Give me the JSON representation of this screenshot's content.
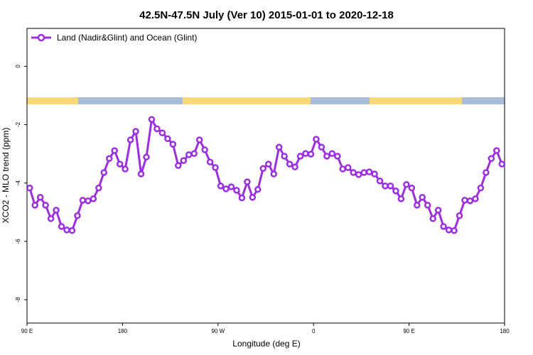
{
  "chart_data": {
    "type": "line",
    "title": "42.5N-47.5N July (Ver 10)   2015-01-01 to 2020-12-18",
    "x_label": "Longitude (deg E)",
    "y_label": "XCO2 - MLO trend (ppm)",
    "legend_position": "top-left",
    "x": [
      92.5,
      97.5,
      102.5,
      107.5,
      112.5,
      117.5,
      122.5,
      127.5,
      132.5,
      137.5,
      142.5,
      147.5,
      152.5,
      157.5,
      162.5,
      167.5,
      172.5,
      177.5,
      182.5,
      187.5,
      192.5,
      197.5,
      202.5,
      207.5,
      212.5,
      217.5,
      222.5,
      227.5,
      232.5,
      237.5,
      242.5,
      247.5,
      252.5,
      257.5,
      262.5,
      267.5,
      272.5,
      277.5,
      282.5,
      287.5,
      292.5,
      297.5,
      302.5,
      307.5,
      312.5,
      317.5,
      322.5,
      327.5,
      332.5,
      337.5,
      342.5,
      347.5,
      352.5,
      357.5,
      362.5,
      367.5,
      372.5,
      377.5,
      382.5,
      387.5,
      392.5,
      397.5,
      402.5,
      407.5,
      412.5,
      417.5,
      422.5,
      427.5,
      432.5,
      437.5,
      442.5,
      447.5,
      452.5,
      457.5,
      462.5,
      467.5,
      472.5,
      477.5,
      482.5,
      487.5,
      492.5,
      497.5,
      502.5,
      507.5,
      512.5,
      517.5,
      522.5,
      527.5,
      532.5,
      537.5
    ],
    "series": [
      {
        "name": "Land (Nadir&Glint) and Ocean (Glint)",
        "color": "#9b2ee0",
        "values": [
          -4.17,
          -4.76,
          -4.49,
          -4.76,
          -5.22,
          -4.93,
          -5.49,
          -5.61,
          -5.63,
          -5.12,
          -4.59,
          -4.61,
          -4.54,
          -4.17,
          -3.64,
          -3.16,
          -2.89,
          -3.35,
          -3.52,
          -2.52,
          -2.23,
          -3.69,
          -3.11,
          -1.82,
          -2.14,
          -2.28,
          -2.48,
          -2.67,
          -3.4,
          -3.23,
          -3.03,
          -2.99,
          -2.52,
          -2.86,
          -3.28,
          -3.47,
          -4.1,
          -4.2,
          -4.13,
          -4.25,
          -4.51,
          -3.96,
          -4.49,
          -4.22,
          -3.5,
          -3.35,
          -3.69,
          -2.77,
          -3.08,
          -3.35,
          -3.45,
          -3.08,
          -2.99,
          -3.01,
          -2.5,
          -2.77,
          -3.08,
          -2.99,
          -3.08,
          -3.52,
          -3.47,
          -3.64,
          -3.71,
          -3.64,
          -3.62,
          -3.69,
          -3.93,
          -4.1,
          -4.1,
          -4.27,
          -4.54,
          -4.05,
          -4.17,
          -4.76,
          -4.49,
          -4.76,
          -5.22,
          -4.93,
          -5.49,
          -5.61,
          -5.63,
          -5.12,
          -4.59,
          -4.61,
          -4.54,
          -4.17,
          -3.64,
          -3.16,
          -2.89,
          -3.35
        ]
      }
    ],
    "xlim": [
      90,
      540
    ],
    "xticks": [
      {
        "value": 90,
        "label": "90 E"
      },
      {
        "value": 180,
        "label": "180"
      },
      {
        "value": 270,
        "label": "90 W"
      },
      {
        "value": 360,
        "label": "0"
      },
      {
        "value": 450,
        "label": "90 E"
      },
      {
        "value": 540,
        "label": "180"
      }
    ],
    "ylim": [
      -8.8,
      1.3
    ],
    "yticks": [
      0,
      -2,
      -4,
      -6,
      -8
    ]
  }
}
